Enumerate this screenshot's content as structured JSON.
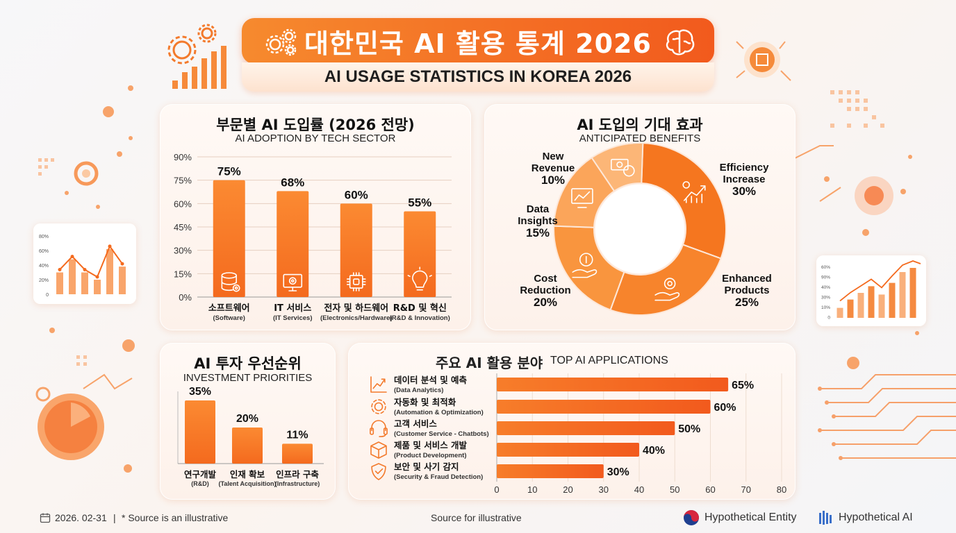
{
  "header": {
    "title_ko": "대한민국 AI 활용 통계 2026",
    "title_en": "AI USAGE STATISTICS IN KOREA 2026"
  },
  "colors": {
    "accent": "#f46a1e",
    "accent_light": "#fb8a32",
    "title_bg": "#f68a2e"
  },
  "chart_data": [
    {
      "type": "bar",
      "title": "부문별 AI 도입률 (2026 전망)",
      "subtitle": "AI ADOPTION BY TECH SECTOR",
      "categories": [
        "소프트웨어",
        "IT 서비스",
        "전자 및 하드웨어",
        "R&D 및 혁신"
      ],
      "categories_en": [
        "(Software)",
        "(IT Services)",
        "(Electronics/Hardware)",
        "(R&D & Innovation)"
      ],
      "icons": [
        "database-gear-icon",
        "monitor-gear-icon",
        "chip-icon",
        "lightbulb-icon"
      ],
      "values": [
        75,
        68,
        60,
        55
      ],
      "value_labels": [
        "75%",
        "68%",
        "60%",
        "55%"
      ],
      "yticks": [
        "90%",
        "75%",
        "60%",
        "45%",
        "30%",
        "15%",
        "0%"
      ],
      "ylim": [
        0,
        90
      ]
    },
    {
      "type": "pie",
      "title": "AI 도입의 기대 효과",
      "subtitle": "ANTICIPATED BENEFITS",
      "slices": [
        {
          "label": "Efficiency Increase",
          "value": 30,
          "value_label": "30%",
          "icon": "chart-gear-icon",
          "color": "#f5761f"
        },
        {
          "label": "Enhanced Products",
          "value": 25,
          "value_label": "25%",
          "icon": "hand-gear-icon",
          "color": "#f7842c"
        },
        {
          "label": "Cost Reduction",
          "value": 20,
          "value_label": "20%",
          "icon": "hand-coin-icon",
          "color": "#f9953e"
        },
        {
          "label": "Data Insights",
          "value": 15,
          "value_label": "15%",
          "icon": "analytics-screen-icon",
          "color": "#fba55a"
        },
        {
          "label": "New Revenue",
          "value": 10,
          "value_label": "10%",
          "icon": "money-icon",
          "color": "#fcb677"
        }
      ],
      "label_lines": {
        "efficiency": [
          "Efficiency",
          "Increase",
          "30%"
        ],
        "enhanced": [
          "Enhanced",
          "Products",
          "25%"
        ],
        "cost": [
          "Cost",
          "Reduction",
          "20%"
        ],
        "insights": [
          "Data",
          "Insights",
          "15%"
        ],
        "revenue": [
          "New",
          "Revenue",
          "10%"
        ]
      }
    },
    {
      "type": "bar",
      "title": "AI 투자 우선순위",
      "subtitle": "INVESTMENT PRIORITIES",
      "categories": [
        "연구개발",
        "인재 확보",
        "인프라 구축"
      ],
      "categories_en": [
        "(R&D)",
        "(Talent Acquisition)",
        "(Infrastructure)"
      ],
      "values": [
        35,
        20,
        11
      ],
      "value_labels": [
        "35%",
        "20%",
        "11%"
      ]
    },
    {
      "type": "bar",
      "orientation": "horizontal",
      "title": "주요 AI 활용 분야",
      "subtitle": "TOP AI APPLICATIONS",
      "categories": [
        "데이터 분석 및 예측",
        "자동화 및 최적화",
        "고객 서비스",
        "제품 및 서비스 개발",
        "보안 및 사기 감지"
      ],
      "categories_en": [
        "(Data Analytics)",
        "(Automation & Optimization)",
        "(Customer Service - Chatbots)",
        "(Product Development)",
        "(Security & Fraud Detection)"
      ],
      "icons": [
        "analytics-icon",
        "gear-icon",
        "headset-icon",
        "box-icon",
        "shield-check-icon"
      ],
      "values": [
        65,
        60,
        50,
        40,
        30
      ],
      "value_labels": [
        "65%",
        "60%",
        "50%",
        "40%",
        "30%"
      ],
      "xticks": [
        "0",
        "10",
        "20",
        "30",
        "40",
        "50",
        "60",
        "70",
        "80"
      ],
      "xlim": [
        0,
        80
      ]
    }
  ],
  "decor": {
    "mini_left_ticks": [
      "80%",
      "60%",
      "40%",
      "20%",
      "0"
    ],
    "mini_left_values": [
      30,
      48,
      30,
      20,
      62,
      38
    ],
    "mini_right_ticks": [
      "60%",
      "90%",
      "40%",
      "30%",
      "10%",
      "0"
    ],
    "mini_right_values": [
      12,
      22,
      30,
      38,
      28,
      42,
      55,
      60
    ]
  },
  "footer": {
    "date": "2026. 02-31",
    "separator": "|",
    "note": "* Source is an illustrative",
    "center": "Source for illustrative",
    "entity1": "Hypothetical Entity",
    "entity2": "Hypothetical AI"
  }
}
